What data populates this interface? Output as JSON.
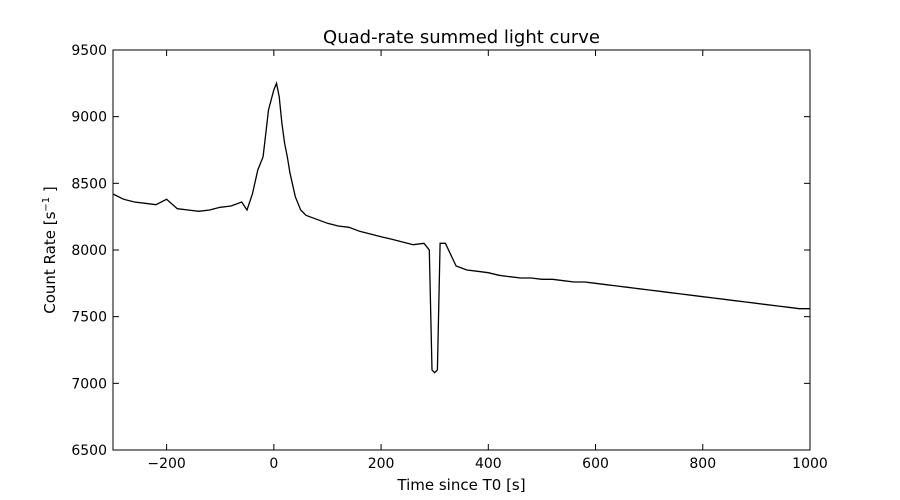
{
  "chart_data": {
    "type": "line",
    "title": "Quad-rate summed light curve",
    "xlabel": "Time since T0 [s]",
    "ylabel": "Count Rate [s",
    "ylabel_superscript": "−1",
    "ylabel_suffix": " ]",
    "xlim": [
      -300,
      1000
    ],
    "ylim": [
      6500,
      9500
    ],
    "xticks": [
      -200,
      0,
      200,
      400,
      600,
      800,
      1000
    ],
    "yticks": [
      6500,
      7000,
      7500,
      8000,
      8500,
      9000,
      9500
    ],
    "xtick_labels": [
      "−200",
      "0",
      "200",
      "400",
      "600",
      "800",
      "1000"
    ],
    "ytick_labels": [
      "6500",
      "7000",
      "7500",
      "8000",
      "8500",
      "9000",
      "9500"
    ],
    "grid": false,
    "line_color": "#000000",
    "series": [
      {
        "name": "",
        "x": [
          -300,
          -280,
          -260,
          -240,
          -220,
          -200,
          -180,
          -160,
          -140,
          -120,
          -100,
          -80,
          -60,
          -50,
          -40,
          -30,
          -20,
          -10,
          0,
          5,
          10,
          15,
          20,
          25,
          30,
          40,
          50,
          60,
          80,
          100,
          120,
          140,
          160,
          180,
          200,
          220,
          240,
          260,
          280,
          290,
          295,
          300,
          305,
          310,
          320,
          340,
          360,
          380,
          400,
          420,
          440,
          460,
          480,
          500,
          520,
          540,
          560,
          580,
          600,
          620,
          640,
          660,
          680,
          700,
          720,
          740,
          760,
          780,
          800,
          820,
          840,
          860,
          880,
          900,
          920,
          940,
          960,
          980,
          1000
        ],
        "y": [
          8420,
          8380,
          8360,
          8350,
          8340,
          8380,
          8310,
          8300,
          8290,
          8300,
          8320,
          8330,
          8360,
          8300,
          8420,
          8600,
          8700,
          9050,
          9200,
          9250,
          9150,
          8950,
          8800,
          8700,
          8580,
          8400,
          8300,
          8260,
          8230,
          8200,
          8180,
          8170,
          8140,
          8120,
          8100,
          8080,
          8060,
          8040,
          8050,
          8000,
          7100,
          7080,
          7100,
          8050,
          8050,
          7880,
          7850,
          7840,
          7830,
          7810,
          7800,
          7790,
          7790,
          7780,
          7780,
          7770,
          7760,
          7760,
          7750,
          7740,
          7730,
          7720,
          7710,
          7700,
          7690,
          7680,
          7670,
          7660,
          7650,
          7640,
          7630,
          7620,
          7610,
          7600,
          7590,
          7580,
          7570,
          7560,
          7560
        ]
      }
    ]
  }
}
